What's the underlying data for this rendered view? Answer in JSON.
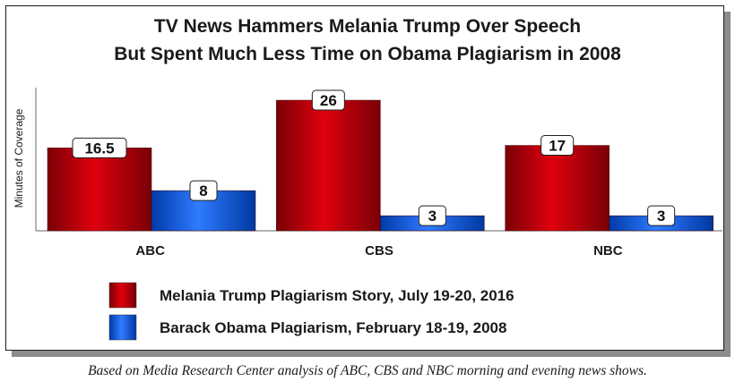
{
  "chart_data": {
    "type": "bar",
    "title_lines": [
      "TV News Hammers Melania Trump Over Speech",
      "But Spent Much Less Time on Obama Plagiarism in 2008"
    ],
    "ylabel": "Minutes of Coverage",
    "categories": [
      "ABC",
      "CBS",
      "NBC"
    ],
    "series": [
      {
        "name": "Melania Trump Plagiarism Story, July 19-20, 2016",
        "values": [
          16.5,
          26,
          17
        ],
        "value_labels": [
          "16.5",
          "26",
          "17"
        ],
        "color": "#c8000a"
      },
      {
        "name": "Barack Obama Plagiarism, February 18-19, 2008",
        "values": [
          8,
          3,
          3
        ],
        "value_labels": [
          "8",
          "3",
          "3"
        ],
        "color": "#1560e0"
      }
    ],
    "ylim": [
      0,
      28.5
    ],
    "grid": false,
    "legend_position": "bottom"
  },
  "footnote": "Based on Media Research Center analysis of ABC, CBS and NBC morning and evening news shows."
}
